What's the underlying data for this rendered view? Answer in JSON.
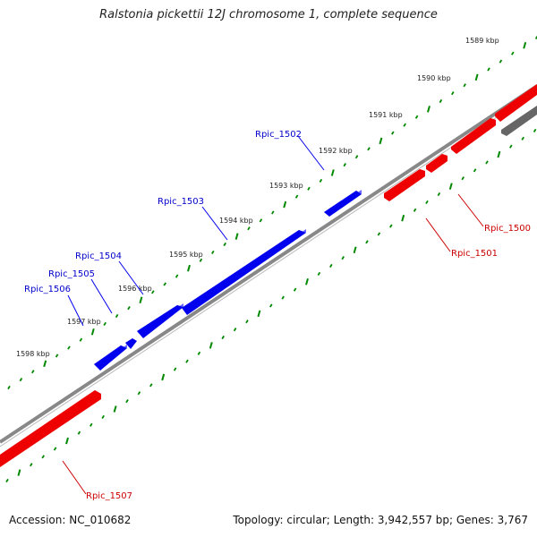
{
  "title": "Ralstonia pickettii 12J chromosome 1, complete sequence",
  "footer": {
    "accession": "Accession: NC_010682",
    "summary": "Topology: circular; Length: 3,942,557 bp; Genes: 3,767"
  },
  "colors": {
    "forward_gene": "#0000ee",
    "reverse_gene": "#ee0000",
    "other_gene": "#555555",
    "backbone": "#777777",
    "ticks": "#008800"
  },
  "kbp_labels": [
    "1589 kbp",
    "1590 kbp",
    "1591 kbp",
    "1592 kbp",
    "1593 kbp",
    "1594 kbp",
    "1595 kbp",
    "1596 kbp",
    "1597 kbp",
    "1598 kbp"
  ],
  "genes_forward": [
    "Rpic_1502",
    "Rpic_1503",
    "Rpic_1504",
    "Rpic_1505",
    "Rpic_1506"
  ],
  "genes_reverse": [
    "Rpic_1500",
    "Rpic_1501",
    "Rpic_1507"
  ]
}
